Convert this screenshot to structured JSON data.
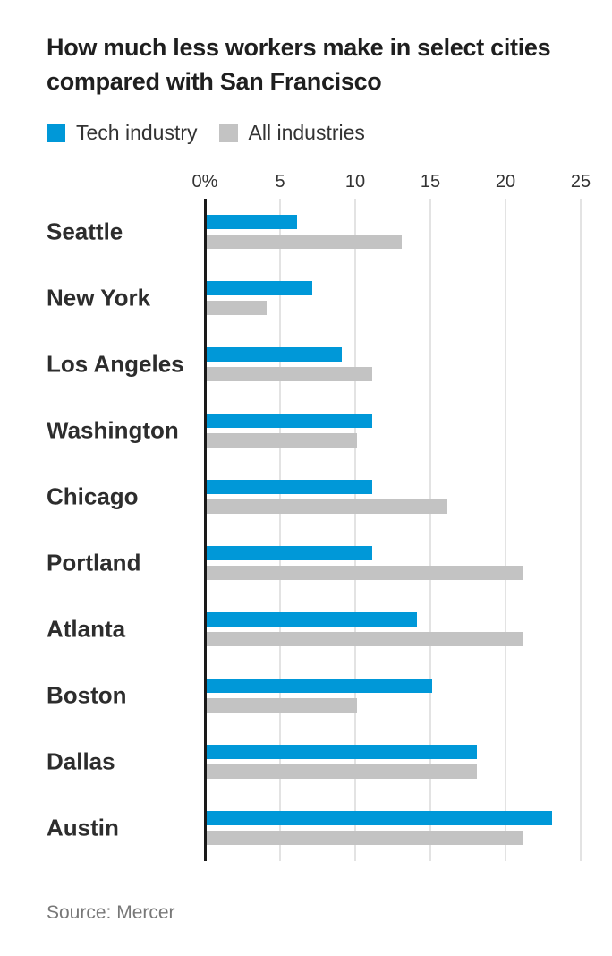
{
  "chart_data": {
    "type": "bar",
    "orientation": "horizontal",
    "title": "How much less workers make in select cities compared with San Francisco",
    "categories": [
      "Seattle",
      "New York",
      "Los Angeles",
      "Washington",
      "Chicago",
      "Portland",
      "Atlanta",
      "Boston",
      "Dallas",
      "Austin"
    ],
    "series": [
      {
        "name": "Tech industry",
        "color": "#0098d8",
        "values": [
          6,
          7,
          9,
          11,
          11,
          11,
          14,
          15,
          18,
          23
        ]
      },
      {
        "name": "All industries",
        "color": "#c3c3c3",
        "values": [
          13,
          4,
          11,
          10,
          16,
          21,
          21,
          10,
          18,
          21
        ]
      }
    ],
    "xlim": [
      0,
      25
    ],
    "ticks": [
      {
        "label": "0%",
        "value": 0
      },
      {
        "label": "5",
        "value": 5
      },
      {
        "label": "10",
        "value": 10
      },
      {
        "label": "15",
        "value": 15
      },
      {
        "label": "20",
        "value": 20
      },
      {
        "label": "25",
        "value": 25
      }
    ],
    "unit": "percent",
    "grid": true,
    "legend_position": "top",
    "source": "Source: Mercer",
    "colors": {
      "axis": "#1a1a1a",
      "gridline": "#e3e3e3",
      "title_text": "#1f1f1f",
      "label_text": "#2d2d2d",
      "tick_text": "#333333",
      "source_text": "#787878"
    }
  }
}
